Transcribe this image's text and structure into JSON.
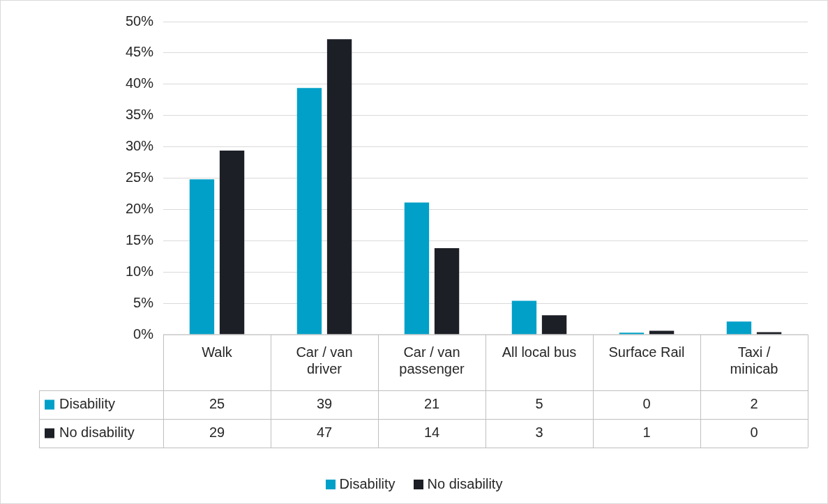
{
  "chart_data": {
    "type": "bar",
    "categories": [
      "Walk",
      "Car / van driver",
      "Car / van passenger",
      "All local bus",
      "Surface Rail",
      "Taxi / minicab"
    ],
    "series": [
      {
        "name": "Disability",
        "color": "#00a0c8",
        "values": [
          24.8,
          39.4,
          21.1,
          5.4,
          0.3,
          2.1
        ],
        "value_labels": [
          "25",
          "39",
          "21",
          "5",
          "0",
          "2"
        ]
      },
      {
        "name": "No disability",
        "color": "#1c1f26",
        "values": [
          29.4,
          47.2,
          13.8,
          3.1,
          0.6,
          0.4
        ],
        "value_labels": [
          "29",
          "47",
          "14",
          "3",
          "1",
          "0"
        ]
      }
    ],
    "ylim": [
      0,
      50
    ],
    "yticks": [
      {
        "value": 0,
        "label": "0%"
      },
      {
        "value": 5,
        "label": "5%"
      },
      {
        "value": 10,
        "label": "10%"
      },
      {
        "value": 15,
        "label": "15%"
      },
      {
        "value": 20,
        "label": "20%"
      },
      {
        "value": 25,
        "label": "25%"
      },
      {
        "value": 30,
        "label": "30%"
      },
      {
        "value": 35,
        "label": "35%"
      },
      {
        "value": 40,
        "label": "40%"
      },
      {
        "value": 45,
        "label": "45%"
      },
      {
        "value": 50,
        "label": "50%"
      }
    ],
    "grid": "y",
    "legend": "bottom"
  }
}
